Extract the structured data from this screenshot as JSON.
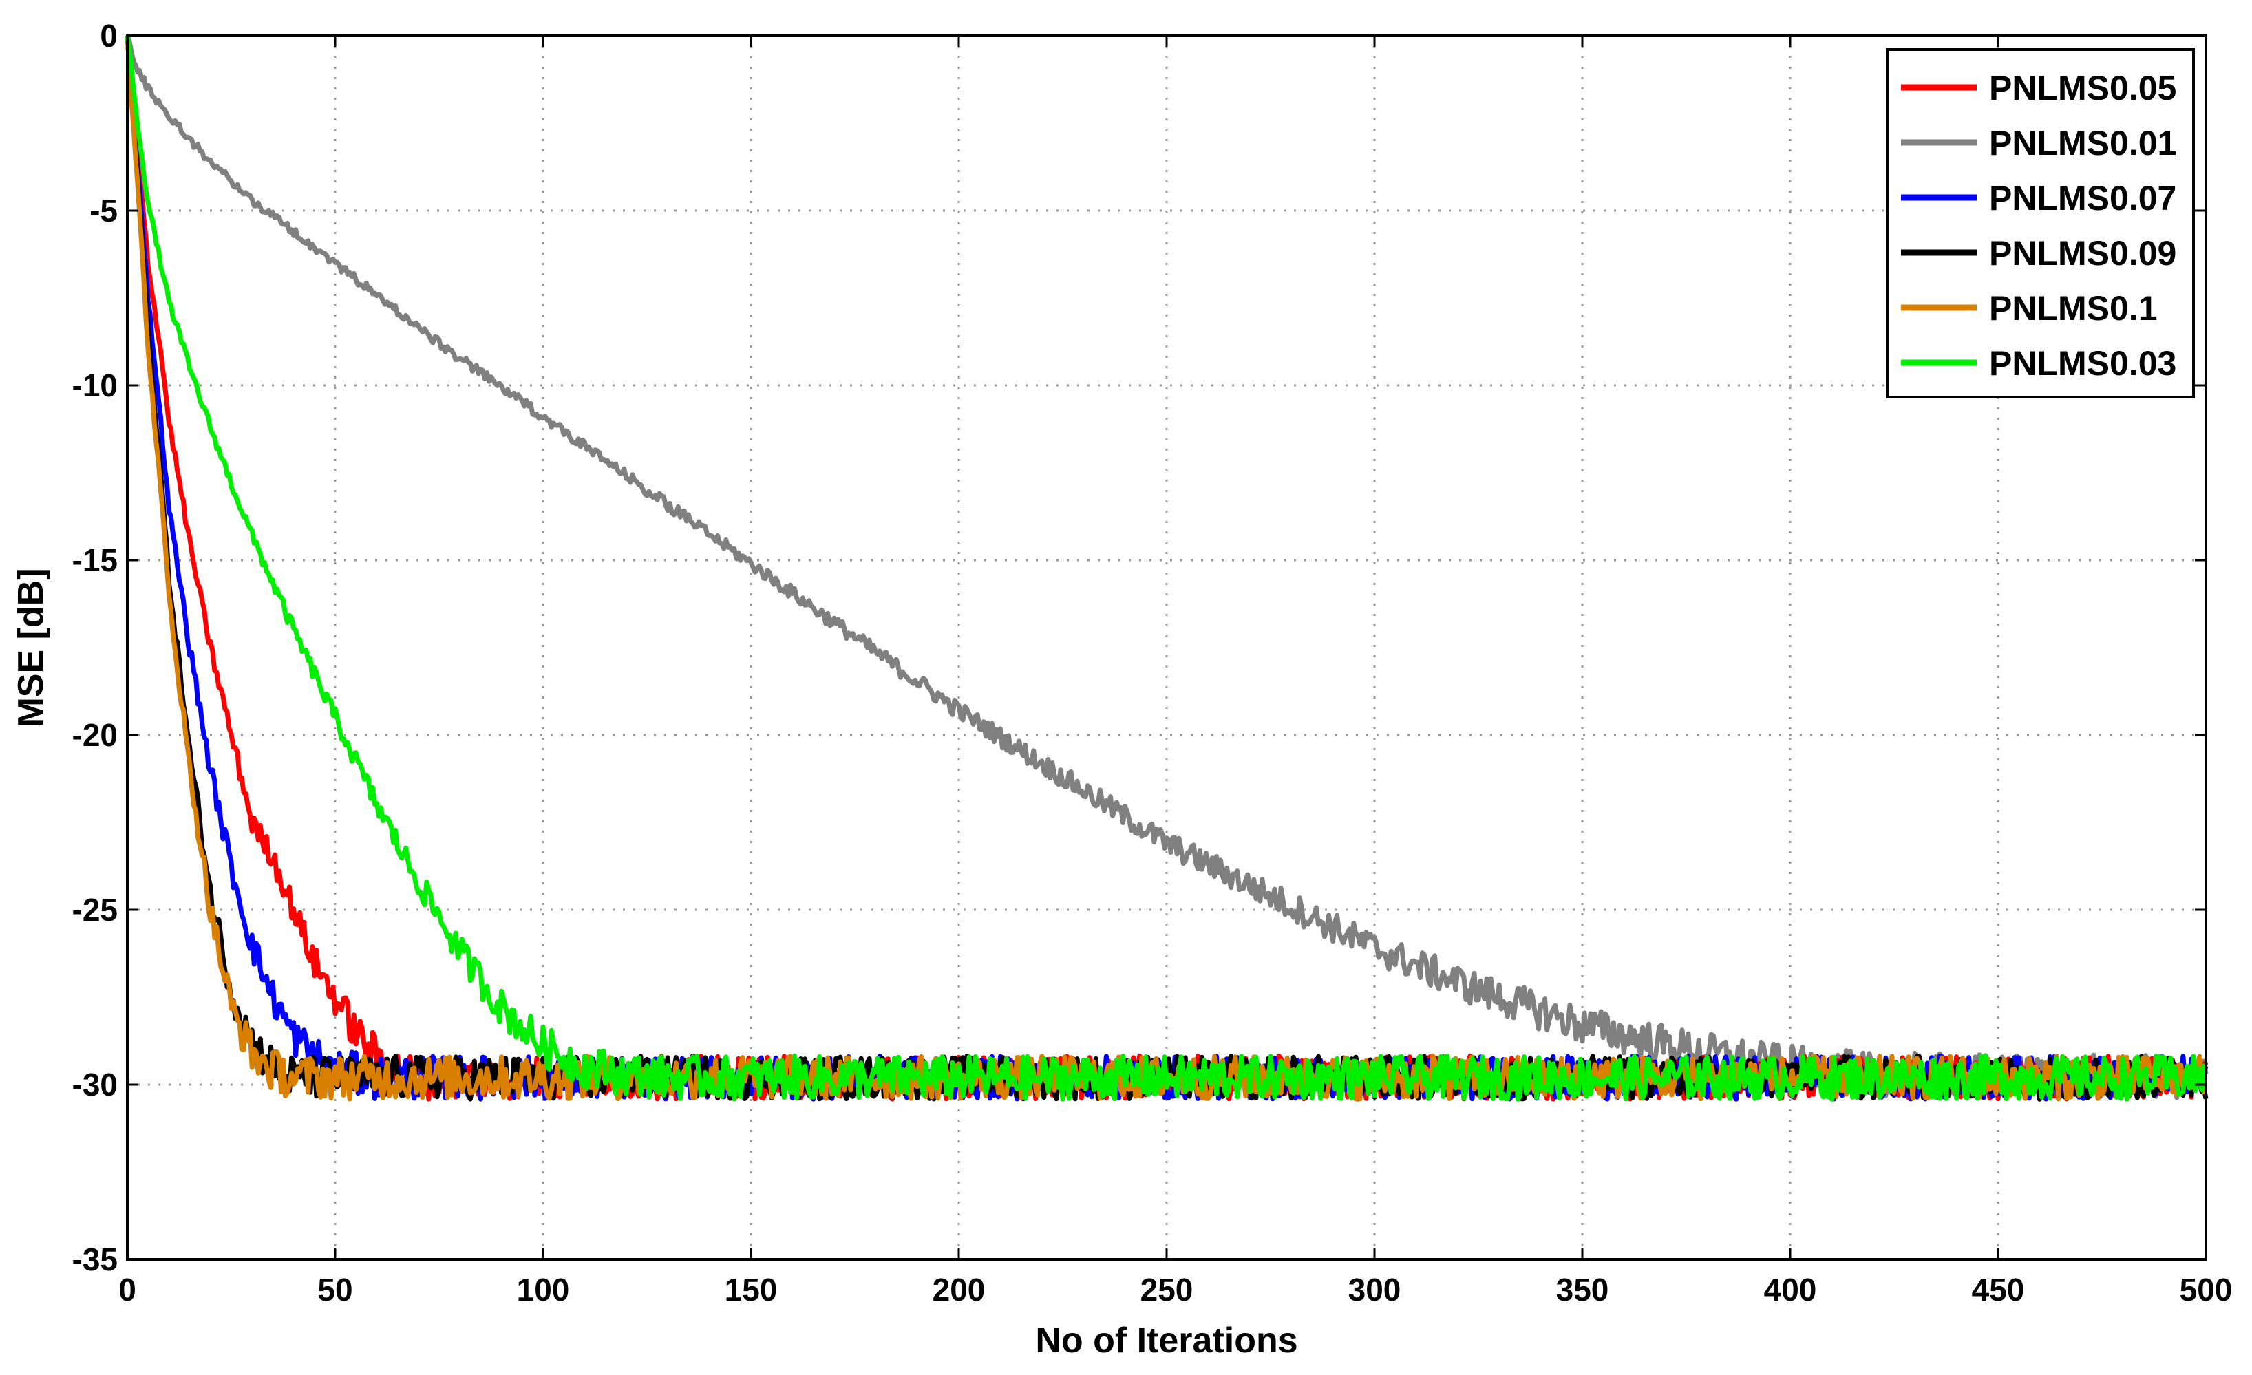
{
  "chart_data": {
    "type": "line",
    "title": "",
    "xlabel": "No of Iterations",
    "ylabel": "MSE [dB]",
    "xlim": [
      0,
      500
    ],
    "ylim": [
      -35,
      0
    ],
    "xticks": [
      0,
      50,
      100,
      150,
      200,
      250,
      300,
      350,
      400,
      450,
      500
    ],
    "yticks": [
      0,
      -5,
      -10,
      -15,
      -20,
      -25,
      -30,
      -35
    ],
    "grid": true,
    "legend_position": "top-right",
    "noise_floor": -29.8,
    "series": [
      {
        "name": "PNLMS0.05",
        "color": "#ff0000",
        "x": [
          0,
          3,
          5,
          8,
          10,
          15,
          20,
          25,
          30,
          35,
          40,
          45,
          50,
          55,
          60,
          65,
          70,
          80,
          90,
          100,
          500
        ],
        "y": [
          0,
          -4,
          -6.5,
          -9,
          -11,
          -14.5,
          -17.5,
          -20,
          -22.5,
          -23.5,
          -25,
          -26.5,
          -27.5,
          -28.5,
          -29.2,
          -29.6,
          -29.8,
          -29.8,
          -29.8,
          -29.8,
          -29.8
        ]
      },
      {
        "name": "PNLMS0.01",
        "color": "#808080",
        "x": [
          0,
          2,
          5,
          10,
          20,
          30,
          40,
          50,
          75,
          100,
          125,
          150,
          175,
          200,
          225,
          250,
          275,
          300,
          325,
          350,
          375,
          400,
          410,
          420,
          500
        ],
        "y": [
          0,
          -0.9,
          -1.5,
          -2.3,
          -3.6,
          -4.7,
          -5.6,
          -6.5,
          -8.8,
          -10.9,
          -13,
          -15.1,
          -17.2,
          -19.3,
          -21.2,
          -23.1,
          -24.6,
          -26.1,
          -27.3,
          -28.3,
          -29.0,
          -29.5,
          -29.6,
          -29.7,
          -29.8
        ]
      },
      {
        "name": "PNLMS0.07",
        "color": "#0000ff",
        "x": [
          0,
          3,
          5,
          8,
          10,
          15,
          20,
          25,
          30,
          35,
          40,
          45,
          50,
          60,
          70,
          500
        ],
        "y": [
          0,
          -4.5,
          -7.5,
          -11,
          -13.5,
          -17.5,
          -21,
          -23.8,
          -26,
          -27.5,
          -28.6,
          -29.2,
          -29.6,
          -29.8,
          -29.8,
          -29.8
        ]
      },
      {
        "name": "PNLMS0.09",
        "color": "#000000",
        "x": [
          0,
          3,
          5,
          8,
          10,
          15,
          20,
          25,
          30,
          35,
          40,
          45,
          50,
          500
        ],
        "y": [
          0,
          -5,
          -8.5,
          -12.5,
          -15.5,
          -20.5,
          -24.5,
          -27.3,
          -28.8,
          -29.5,
          -29.8,
          -29.8,
          -29.8,
          -29.8
        ]
      },
      {
        "name": "PNLMS0.1",
        "color": "#d98000",
        "x": [
          0,
          3,
          5,
          8,
          10,
          15,
          20,
          25,
          30,
          35,
          40,
          45,
          50,
          500
        ],
        "y": [
          0,
          -5.2,
          -9,
          -13,
          -16,
          -21,
          -25,
          -27.8,
          -29.1,
          -29.6,
          -29.8,
          -29.8,
          -29.8,
          -29.8
        ]
      },
      {
        "name": "PNLMS0.03",
        "color": "#00ee00",
        "x": [
          0,
          3,
          5,
          10,
          15,
          20,
          25,
          30,
          40,
          50,
          60,
          70,
          80,
          90,
          100,
          110,
          120,
          130,
          500
        ],
        "y": [
          0,
          -3,
          -4.8,
          -7.6,
          -9.5,
          -11.2,
          -12.8,
          -14.3,
          -17,
          -19.5,
          -22,
          -24.2,
          -26.2,
          -27.8,
          -28.9,
          -29.5,
          -29.7,
          -29.8,
          -29.8
        ]
      }
    ]
  }
}
